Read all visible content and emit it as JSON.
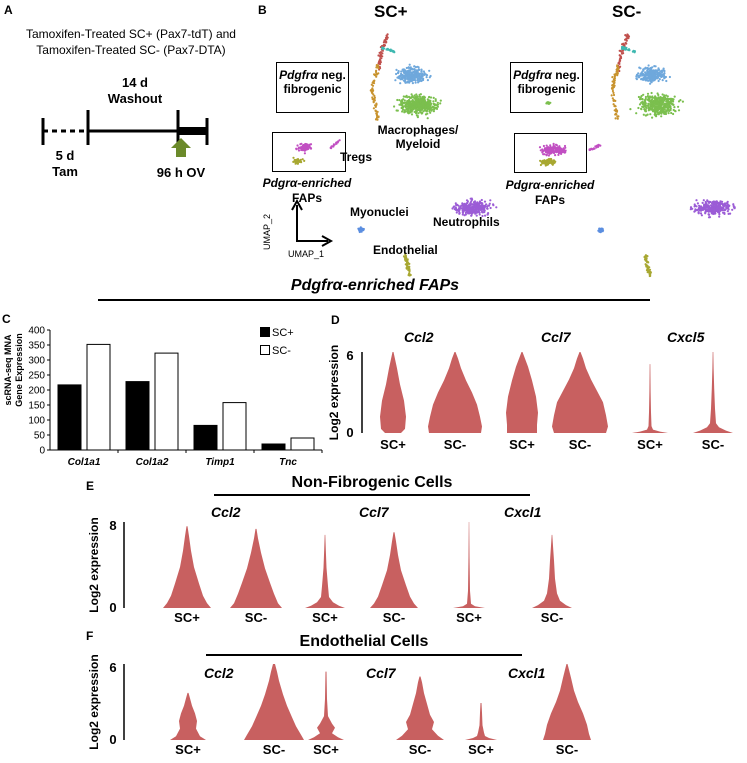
{
  "colors": {
    "violin": "#c86060",
    "bar_sc_plus": "#000000",
    "bar_sc_minus": "#ffffff",
    "arrow": "#6b8a2a",
    "umap_green": "#7bbf4e",
    "umap_blue": "#6fa8dc",
    "umap_purple": "#9b5cd6",
    "umap_magenta": "#c14fc2",
    "umap_olive": "#a8a832",
    "umap_orange": "#c8932e",
    "umap_red": "#c0504d",
    "umap_teal": "#3fb8b0",
    "umap_lightblue": "#5b8ee0"
  },
  "panelA": {
    "letter": "A",
    "line1": "Tamoxifen-Treated SC+ (Pax7-tdT) and",
    "line2": "Tamoxifen-Treated SC- (Pax7-DTA)",
    "washout_line1": "14 d",
    "washout_line2": "Washout",
    "tam_line1": "5 d",
    "tam_line2": "Tam",
    "ov_label": "96 h OV"
  },
  "panelB": {
    "letter": "B",
    "sc_plus_title": "SC+",
    "sc_minus_title": "SC-",
    "neg_fib_line1": "Pdgfrα",
    "neg_fib_line1b": " neg.",
    "neg_fib_line2": "fibrogenic",
    "neg_fib_right_line1": "Pdgfrα",
    "neg_fib_right_line1b": " neg.",
    "neg_fib_right_line2": "fibrogenic",
    "macro_line1": "Macrophages/",
    "macro_line2": "Myeloid",
    "tregs": "Tregs",
    "faps_left_line1": "Pdgrα-enriched",
    "faps_left_line2": "FAPs",
    "faps_right_line1": "Pdgrα-enriched",
    "faps_right_line2": "FAPs",
    "myonuclei": "Myonuclei",
    "neutrophils": "Neutrophils",
    "endothelial": "Endothelial",
    "umap2": "UMAP_2",
    "umap1": "UMAP_1"
  },
  "section_title_faps": "Pdgfrα-enriched FAPs",
  "chart_data": [
    {
      "type": "bar",
      "panel": "C",
      "categories": [
        "Col1a1",
        "Col1a2",
        "Timp1",
        "Tnc"
      ],
      "series": [
        {
          "name": "SC+",
          "values": [
            217,
            228,
            82,
            20
          ]
        },
        {
          "name": "SC-",
          "values": [
            352,
            323,
            158,
            40
          ]
        }
      ],
      "ylabel_line1": "scRNA-seq MNA",
      "ylabel_line2": "Gene Expression",
      "ylim": [
        0,
        400
      ],
      "yticks": [
        "0",
        "50",
        "100",
        "150",
        "200",
        "250",
        "300",
        "350",
        "400"
      ],
      "legend": [
        "SC+",
        "SC-"
      ]
    },
    {
      "type": "violin",
      "panel": "D",
      "genes": [
        "Ccl2",
        "Ccl7",
        "Cxcl5"
      ],
      "groups": [
        "SC+",
        "SC-",
        "SC+",
        "SC-",
        "SC+",
        "SC-"
      ],
      "ylabel": "Log2 expression",
      "ylim": [
        0,
        6
      ],
      "yticks": [
        "0",
        "6"
      ]
    },
    {
      "type": "violin",
      "panel": "E",
      "title": "Non-Fibrogenic Cells",
      "genes": [
        "Ccl2",
        "Ccl7",
        "Cxcl1"
      ],
      "groups": [
        "SC+",
        "SC-",
        "SC+",
        "SC-",
        "SC+",
        "SC-"
      ],
      "ylabel": "Log2 expression",
      "ylim": [
        0,
        8
      ],
      "yticks": [
        "0",
        "8"
      ]
    },
    {
      "type": "violin",
      "panel": "F",
      "title": "Endothelial Cells",
      "genes": [
        "Ccl2",
        "Ccl7",
        "Cxcl1"
      ],
      "groups": [
        "SC+",
        "SC-",
        "SC+",
        "SC-",
        "SC+",
        "SC-"
      ],
      "ylabel": "Log2 expression",
      "ylim": [
        0,
        6
      ],
      "yticks": [
        "0",
        "6"
      ]
    }
  ]
}
